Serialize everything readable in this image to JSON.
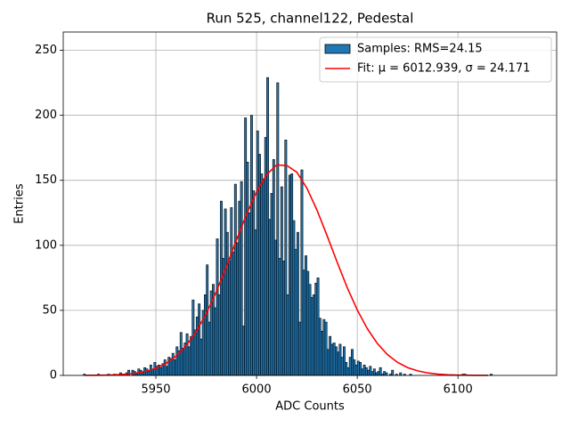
{
  "chart_data": {
    "type": "histogram",
    "title": "Run 525, channel122, Pedestal",
    "xlabel": "ADC Counts",
    "ylabel": "Entries",
    "bins": [
      5914,
      5915,
      5916,
      5917,
      5918,
      5919,
      5920,
      5921,
      5922,
      5923,
      5924,
      5925,
      5926,
      5927,
      5928,
      5929,
      5930,
      5931,
      5932,
      5933,
      5934,
      5935,
      5936,
      5937,
      5938,
      5939,
      5940,
      5941,
      5942,
      5943,
      5944,
      5945,
      5946,
      5947,
      5948,
      5949,
      5950,
      5951,
      5952,
      5953,
      5954,
      5955,
      5956,
      5957,
      5958,
      5959,
      5960,
      5961,
      5962,
      5963,
      5964,
      5965,
      5966,
      5967,
      5968,
      5969,
      5970,
      5971,
      5972,
      5973,
      5974,
      5975,
      5976,
      5977,
      5978,
      5979,
      5980,
      5981,
      5982,
      5983,
      5984,
      5985,
      5986,
      5987,
      5988,
      5989,
      5990,
      5991,
      5992,
      5993,
      5994,
      5995,
      5996,
      5997,
      5998,
      5999,
      6000,
      6001,
      6002,
      6003,
      6004,
      6005,
      6006,
      6007,
      6008,
      6009,
      6010,
      6011,
      6012,
      6013,
      6014,
      6015,
      6016,
      6017,
      6018,
      6019,
      6020,
      6021,
      6022,
      6023,
      6024,
      6025,
      6026,
      6027,
      6028,
      6029,
      6030,
      6031,
      6032,
      6033,
      6034,
      6035,
      6036,
      6037,
      6038,
      6039,
      6040,
      6041,
      6042,
      6043,
      6044,
      6045,
      6046,
      6047,
      6048,
      6049,
      6050,
      6051,
      6052,
      6053,
      6054,
      6055,
      6056,
      6057,
      6058,
      6059,
      6060,
      6061,
      6062,
      6063,
      6064,
      6065,
      6066,
      6067,
      6068,
      6069,
      6070,
      6071,
      6072,
      6073,
      6074,
      6075,
      6076,
      6077,
      6078,
      6079,
      6080,
      6081,
      6082,
      6083,
      6084,
      6085,
      6086,
      6087,
      6088,
      6089,
      6090,
      6091,
      6092,
      6093,
      6094,
      6095,
      6096,
      6097,
      6098,
      6099,
      6100,
      6101,
      6102,
      6103,
      6104,
      6105,
      6106,
      6107,
      6108,
      6109,
      6110,
      6111,
      6112,
      6113,
      6114,
      6115,
      6116,
      6117,
      6118
    ],
    "series": [
      {
        "type": "histogram",
        "name": "Samples: RMS=24.15",
        "color": "#1f77b4",
        "edgecolor": "#000000",
        "values": [
          1,
          0,
          0,
          0,
          0,
          0,
          0,
          1,
          0,
          0,
          0,
          0,
          1,
          0,
          0,
          1,
          0,
          0,
          2,
          1,
          0,
          2,
          4,
          0,
          4,
          3,
          1,
          5,
          4,
          3,
          6,
          5,
          3,
          8,
          5,
          10,
          7,
          8,
          6,
          9,
          12,
          7,
          14,
          13,
          17,
          12,
          22,
          19,
          33,
          21,
          25,
          32,
          22,
          30,
          58,
          35,
          45,
          55,
          28,
          50,
          62,
          85,
          41,
          65,
          70,
          52,
          105,
          62,
          134,
          90,
          128,
          110,
          88,
          129,
          95,
          147,
          102,
          134,
          149,
          38,
          198,
          164,
          125,
          200,
          142,
          112,
          188,
          170,
          155,
          151,
          183,
          229,
          120,
          140,
          166,
          104,
          225,
          90,
          145,
          88,
          181,
          62,
          154,
          155,
          119,
          97,
          110,
          41,
          158,
          81,
          92,
          80,
          70,
          60,
          62,
          71,
          75,
          44,
          34,
          43,
          41,
          20,
          30,
          24,
          25,
          22,
          18,
          24,
          14,
          22,
          10,
          6,
          14,
          20,
          12,
          8,
          11,
          10,
          5,
          8,
          6,
          4,
          7,
          3,
          5,
          2,
          3,
          6,
          1,
          3,
          2,
          0,
          1,
          4,
          0,
          1,
          0,
          2,
          0,
          1,
          0,
          0,
          1,
          0,
          0,
          0,
          0,
          0,
          0,
          0,
          0,
          0,
          0,
          0,
          0,
          0,
          0,
          0,
          0,
          0,
          0,
          0,
          0,
          0,
          0,
          0,
          0,
          0,
          1,
          1,
          0,
          0,
          0,
          0,
          0,
          0,
          0,
          0,
          0,
          0,
          0,
          0,
          1,
          0
        ]
      },
      {
        "type": "line",
        "name": "Fit: μ = 6012.939, σ = 24.171",
        "color": "#ff0000",
        "x": [
          5915,
          5920,
          5925,
          5930,
          5935,
          5940,
          5945,
          5950,
          5955,
          5960,
          5965,
          5970,
          5975,
          5980,
          5985,
          5990,
          5995,
          6000,
          6005,
          6010,
          6015,
          6020,
          6025,
          6030,
          6035,
          6040,
          6045,
          6050,
          6055,
          6060,
          6065,
          6070,
          6075,
          6080,
          6085,
          6090,
          6095,
          6100,
          6105,
          6110,
          6115
        ],
        "values": [
          0.04,
          0.1,
          0.22,
          0.45,
          0.9,
          1.7,
          3.1,
          5.5,
          9.2,
          14.8,
          22.8,
          33.6,
          47.6,
          64.4,
          83.6,
          104,
          123.7,
          141.2,
          154.4,
          161.8,
          161.4,
          156.2,
          143.9,
          127.1,
          107.5,
          87.1,
          67.6,
          50.3,
          35.9,
          24.5,
          16,
          10,
          6,
          3.5,
          1.9,
          1,
          0.5,
          0.25,
          0.12,
          0.05,
          0.02
        ]
      }
    ],
    "xlim": [
      5904,
      6149
    ],
    "xticks": [
      5950,
      6000,
      6050,
      6100
    ],
    "ylim": [
      0,
      264
    ],
    "yticks": [
      0,
      50,
      100,
      150,
      200,
      250
    ],
    "grid": true,
    "legend": "upper right"
  }
}
